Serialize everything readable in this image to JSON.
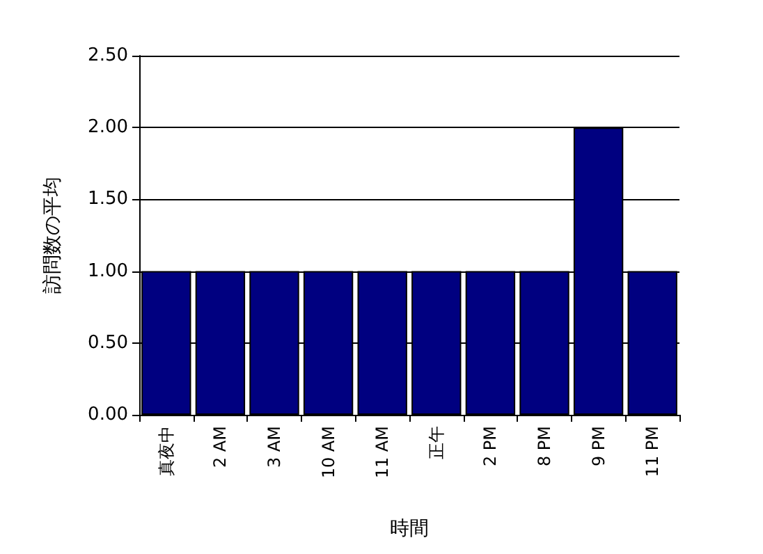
{
  "chart_data": {
    "type": "bar",
    "xlabel": "時間",
    "ylabel": "訪問数の平均",
    "categories": [
      "真夜中",
      "2 AM",
      "3 AM",
      "10 AM",
      "11 AM",
      "正午",
      "2 PM",
      "8 PM",
      "9 PM",
      "11 PM"
    ],
    "values": [
      1,
      1,
      1,
      1,
      1,
      1,
      1,
      1,
      2,
      1
    ],
    "color": "#000080",
    "ylim": [
      0,
      2.5
    ],
    "yticks": [
      {
        "value": 0,
        "label": "0.00"
      },
      {
        "value": 0.5,
        "label": "0.50"
      },
      {
        "value": 1,
        "label": "1.00"
      },
      {
        "value": 1.5,
        "label": "1.50"
      },
      {
        "value": 2,
        "label": "2.00"
      },
      {
        "value": 2.5,
        "label": "2.50"
      }
    ],
    "grid": "y"
  }
}
